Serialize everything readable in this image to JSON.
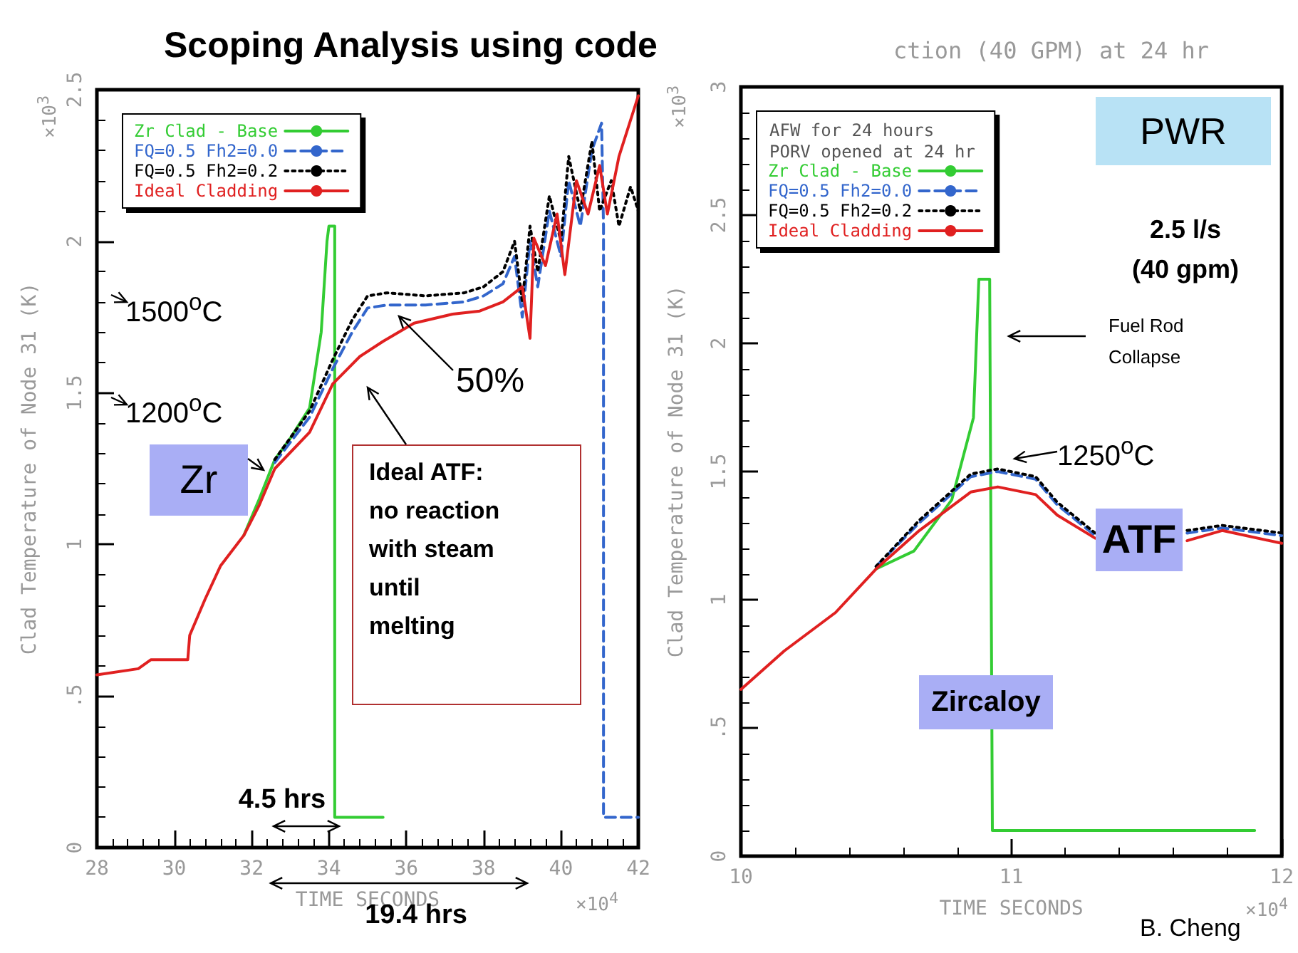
{
  "chart_data": [
    {
      "type": "line",
      "title": "Scoping Analysis using code",
      "xlabel": "TIME SECONDS",
      "ylabel": "Clad Temperature of Node 31 (K)",
      "xlim": [
        28,
        42
      ],
      "xticks": [
        28,
        30,
        32,
        34,
        36,
        38,
        40,
        42
      ],
      "ylim": [
        0,
        2.5
      ],
      "yticks": [
        0,
        {
          "value": 0.5,
          "label": ".5"
        },
        1,
        1.5,
        2,
        2.5
      ],
      "legend": "top left",
      "marker": "none",
      "series": [
        {
          "name": "Zr Clad - Base",
          "color": "#33cc33",
          "line_style": "solid",
          "x": [
            31.8,
            32.2,
            32.6,
            33.0,
            33.5,
            33.8,
            33.95,
            34.0,
            34.15,
            34.15,
            35.4
          ],
          "values": [
            1.03,
            1.15,
            1.28,
            1.35,
            1.45,
            1.7,
            2.0,
            2.05,
            2.05,
            0.1,
            0.1
          ]
        },
        {
          "name": "FQ=0.5 Fh2=0.0",
          "color": "#3366cc",
          "line_style": "dashed",
          "x": [
            32.6,
            33.5,
            34.1,
            34.6,
            35.0,
            35.5,
            36.5,
            37.5,
            38.0,
            38.5,
            38.8,
            39.0,
            39.2,
            39.4,
            39.7,
            40.0,
            40.2,
            40.5,
            40.8,
            41.05,
            41.1,
            41.1,
            42.0
          ],
          "values": [
            1.27,
            1.42,
            1.58,
            1.7,
            1.78,
            1.79,
            1.79,
            1.8,
            1.82,
            1.86,
            1.95,
            1.75,
            2.0,
            1.85,
            2.1,
            1.95,
            2.2,
            2.05,
            2.3,
            2.39,
            2.05,
            0.1,
            0.1
          ]
        },
        {
          "name": "FQ=0.5 Fh2=0.2",
          "color": "#000000",
          "line_style": "dotted",
          "x": [
            32.6,
            33.5,
            34.1,
            34.6,
            35.0,
            35.5,
            36.5,
            37.5,
            38.0,
            38.5,
            38.8,
            39.0,
            39.2,
            39.4,
            39.7,
            40.0,
            40.2,
            40.5,
            40.8,
            41.0,
            41.3,
            41.5,
            41.8,
            42.0
          ],
          "values": [
            1.28,
            1.44,
            1.61,
            1.74,
            1.82,
            1.83,
            1.82,
            1.83,
            1.85,
            1.9,
            2.0,
            1.8,
            2.05,
            1.9,
            2.15,
            2.0,
            2.28,
            2.1,
            2.33,
            2.1,
            2.2,
            2.05,
            2.18,
            2.1
          ]
        },
        {
          "name": "Ideal Cladding",
          "color": "#e02020",
          "line_style": "solid",
          "x": [
            28,
            29.07,
            29.4,
            30.35,
            30.4,
            30.8,
            31.2,
            31.8,
            32.2,
            32.6,
            33.5,
            34.1,
            34.8,
            35.4,
            36.2,
            37.2,
            37.9,
            38.5,
            39.0,
            39.2,
            39.3,
            39.6,
            39.9,
            40.1,
            40.4,
            40.7,
            41.0,
            41.2,
            41.5,
            42.0
          ],
          "values": [
            0.57,
            0.59,
            0.62,
            0.62,
            0.7,
            0.82,
            0.93,
            1.03,
            1.13,
            1.25,
            1.37,
            1.53,
            1.62,
            1.67,
            1.73,
            1.76,
            1.77,
            1.8,
            1.85,
            1.68,
            2.01,
            1.92,
            2.09,
            1.89,
            2.2,
            2.09,
            2.25,
            2.09,
            2.28,
            2.48
          ]
        }
      ],
      "annotations": [
        "1500$^{o}$C",
        "1200$^{o}$C",
        "Zr",
        "50%",
        "Ideal ATF:\nno reaction\nwith steam\nuntil\nmelting",
        "4.5 hrs",
        "19.4 hrs",
        "×10$^{3}$",
        "×10$^{4}$"
      ]
    },
    {
      "type": "line",
      "title": "ction (40 GPM) at 24 hr",
      "xlabel": "TIME SECONDS",
      "ylabel": "Clad Temperature of Node 31 (K)",
      "xlim": [
        10,
        12
      ],
      "xticks": [
        10,
        11,
        12
      ],
      "ylim": [
        0,
        3
      ],
      "yticks": [
        0,
        {
          "value": 0.5,
          "label": ".5"
        },
        1,
        1.5,
        2,
        2.5,
        3
      ],
      "legend": "top left",
      "legend_title": "AFW for 24 hours\nPORV opened at 24 hr",
      "marker": "none",
      "series": [
        {
          "name": "Zr Clad - Base",
          "color": "#33cc33",
          "line_style": "solid",
          "x": [
            10.5,
            10.64,
            10.78,
            10.86,
            10.88,
            10.92,
            10.93,
            11.9
          ],
          "values": [
            1.12,
            1.19,
            1.39,
            1.71,
            2.25,
            2.25,
            0.1,
            0.1
          ]
        },
        {
          "name": "FQ=0.5 Fh2=0.0",
          "color": "#3366cc",
          "line_style": "dashed",
          "x": [
            10.5,
            10.66,
            10.85,
            10.95,
            11.09,
            11.17,
            11.31,
            11.4,
            11.5,
            11.65,
            11.78,
            12.0
          ],
          "values": [
            1.13,
            1.3,
            1.48,
            1.5,
            1.47,
            1.37,
            1.25,
            null,
            null,
            1.26,
            1.28,
            1.25
          ]
        },
        {
          "name": "FQ=0.5 Fh2=0.2",
          "color": "#000000",
          "line_style": "dotted",
          "x": [
            10.5,
            10.66,
            10.85,
            10.95,
            11.09,
            11.17,
            11.31,
            11.4,
            11.5,
            11.65,
            11.78,
            12.0
          ],
          "values": [
            1.13,
            1.31,
            1.49,
            1.51,
            1.48,
            1.38,
            1.26,
            null,
            null,
            1.27,
            1.29,
            1.26
          ]
        },
        {
          "name": "Ideal Cladding",
          "color": "#e02020",
          "line_style": "solid",
          "x": [
            10,
            10.16,
            10.35,
            10.5,
            10.66,
            10.85,
            10.95,
            11.09,
            11.17,
            11.31,
            11.4,
            11.5,
            11.65,
            11.78,
            12.0
          ],
          "values": [
            0.65,
            0.8,
            0.95,
            1.12,
            1.27,
            1.42,
            1.44,
            1.41,
            1.33,
            1.24,
            null,
            null,
            1.23,
            1.27,
            1.22
          ]
        }
      ],
      "annotations": [
        "PWR",
        "2.5 l/s\n(40 gpm)",
        "Fuel Rod\nCollapse",
        "1250$^{o}$C",
        "ATF",
        "Zircaloy",
        "B. Cheng",
        "×10$^{3}$",
        "×10$^{4}$"
      ]
    }
  ]
}
